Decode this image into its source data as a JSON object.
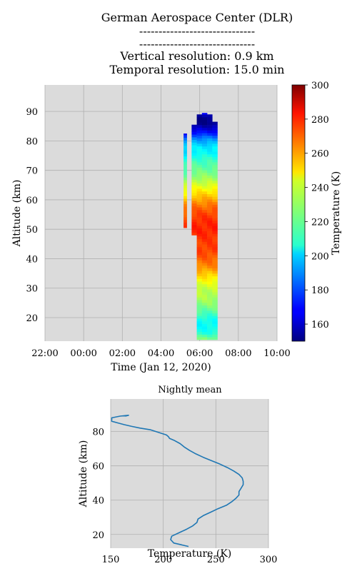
{
  "header": {
    "lines": [
      "German Aerospace Center (DLR)",
      "------------------------------",
      "------------------------------",
      "Vertical resolution: 0.9 km",
      "Temporal resolution: 15.0 min"
    ]
  },
  "chart_data": [
    {
      "type": "heatmap",
      "xlabel": "Time (Jan 12, 2020)",
      "ylabel": "Altitude (km)",
      "x_tick_labels": [
        "22:00",
        "00:00",
        "02:00",
        "04:00",
        "06:00",
        "08:00",
        "10:00"
      ],
      "x_range_hours": [
        -2,
        10
      ],
      "y_ticks": [
        20,
        30,
        40,
        50,
        60,
        70,
        80,
        90
      ],
      "ylim": [
        12,
        99
      ],
      "grid": true,
      "colorbar": {
        "label": "Temperature (K)",
        "ticks": [
          160,
          180,
          200,
          220,
          240,
          260,
          280,
          300
        ],
        "range": [
          150,
          300
        ],
        "colormap": "jet"
      },
      "segments": [
        {
          "t_start": "05:10",
          "t_end": "05:20",
          "alt_min": 50.5,
          "alt_max": 82.5
        },
        {
          "t_start": "05:35",
          "t_end": "06:55",
          "alt_min": 12.5,
          "alt_max": 89.5
        }
      ]
    },
    {
      "type": "line",
      "title": "Nightly mean",
      "xlabel": "Temperature (K)",
      "ylabel": "Altitude (km)",
      "x_ticks": [
        150,
        200,
        250,
        300
      ],
      "y_ticks": [
        20,
        40,
        60,
        80
      ],
      "xlim": [
        150,
        300
      ],
      "ylim": [
        12,
        99
      ],
      "grid": true,
      "color": "#1f77b4",
      "profile": [
        {
          "alt": 13,
          "temp": 224
        },
        {
          "alt": 15,
          "temp": 210
        },
        {
          "alt": 17,
          "temp": 207
        },
        {
          "alt": 19,
          "temp": 208
        },
        {
          "alt": 21,
          "temp": 215
        },
        {
          "alt": 23,
          "temp": 222
        },
        {
          "alt": 25,
          "temp": 228
        },
        {
          "alt": 27,
          "temp": 232
        },
        {
          "alt": 29,
          "temp": 233
        },
        {
          "alt": 31,
          "temp": 238
        },
        {
          "alt": 33,
          "temp": 245
        },
        {
          "alt": 35,
          "temp": 252
        },
        {
          "alt": 37,
          "temp": 260
        },
        {
          "alt": 39,
          "temp": 265
        },
        {
          "alt": 41,
          "temp": 269
        },
        {
          "alt": 43,
          "temp": 272
        },
        {
          "alt": 45,
          "temp": 272
        },
        {
          "alt": 47,
          "temp": 274
        },
        {
          "alt": 49,
          "temp": 276
        },
        {
          "alt": 51,
          "temp": 276
        },
        {
          "alt": 53,
          "temp": 275
        },
        {
          "alt": 55,
          "temp": 272
        },
        {
          "alt": 57,
          "temp": 267
        },
        {
          "alt": 59,
          "temp": 261
        },
        {
          "alt": 61,
          "temp": 254
        },
        {
          "alt": 63,
          "temp": 246
        },
        {
          "alt": 65,
          "temp": 238
        },
        {
          "alt": 67,
          "temp": 231
        },
        {
          "alt": 69,
          "temp": 225
        },
        {
          "alt": 71,
          "temp": 220
        },
        {
          "alt": 73,
          "temp": 216
        },
        {
          "alt": 75,
          "temp": 210
        },
        {
          "alt": 76,
          "temp": 206
        },
        {
          "alt": 77,
          "temp": 205
        },
        {
          "alt": 78,
          "temp": 203
        },
        {
          "alt": 79,
          "temp": 198
        },
        {
          "alt": 80,
          "temp": 193
        },
        {
          "alt": 81,
          "temp": 188
        },
        {
          "alt": 82,
          "temp": 178
        },
        {
          "alt": 83,
          "temp": 170
        },
        {
          "alt": 84,
          "temp": 163
        },
        {
          "alt": 85,
          "temp": 157
        },
        {
          "alt": 86,
          "temp": 151
        },
        {
          "alt": 88,
          "temp": 151
        },
        {
          "alt": 89,
          "temp": 159
        },
        {
          "alt": 89.5,
          "temp": 167
        },
        {
          "alt": 89,
          "temp": 164
        }
      ]
    }
  ]
}
